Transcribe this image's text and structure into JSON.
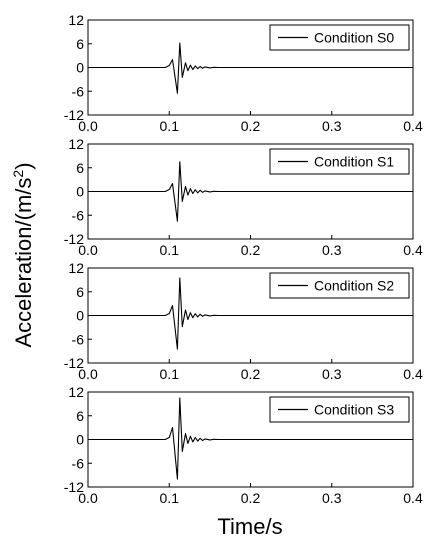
{
  "chart_data": {
    "type": "line",
    "xlabel": "Time/s",
    "ylabel": "Acceleration/(m/s²)",
    "ylabel_parts": {
      "main": "Acceleration/(m/s",
      "sup": "2",
      "close": ")"
    },
    "xlim": [
      0.0,
      0.4
    ],
    "ylim": [
      -12,
      12
    ],
    "x_ticks": [
      "0.0",
      "0.1",
      "0.2",
      "0.3",
      "0.4"
    ],
    "y_ticks": [
      "12",
      "6",
      "0",
      "-6",
      "-12"
    ],
    "grid": false,
    "legend_position": "top-right",
    "line_color": "#000000",
    "panels": [
      {
        "legend": "Condition S0",
        "series": [
          {
            "name": "Condition S0",
            "x": [
              0,
              0.095,
              0.1,
              0.104,
              0.11,
              0.113,
              0.116,
              0.12,
              0.123,
              0.126,
              0.129,
              0.132,
              0.135,
              0.138,
              0.141,
              0.144,
              0.15,
              0.155,
              0.16,
              0.17,
              0.4
            ],
            "y": [
              0,
              0,
              0.5,
              2,
              -6.5,
              6.2,
              -2.5,
              1.2,
              -0.8,
              0.6,
              -0.5,
              0.4,
              -0.3,
              0.25,
              -0.2,
              0.15,
              -0.1,
              0.05,
              0,
              0,
              0
            ]
          }
        ]
      },
      {
        "legend": "Condition S1",
        "series": [
          {
            "name": "Condition S1",
            "x": [
              0,
              0.095,
              0.1,
              0.104,
              0.11,
              0.113,
              0.116,
              0.12,
              0.123,
              0.126,
              0.129,
              0.132,
              0.135,
              0.138,
              0.141,
              0.144,
              0.15,
              0.155,
              0.16,
              0.17,
              0.4
            ],
            "y": [
              0,
              0,
              0.5,
              2,
              -7.5,
              7.5,
              -2.5,
              1.3,
              -0.9,
              0.7,
              -0.5,
              0.45,
              -0.35,
              0.3,
              -0.2,
              0.15,
              -0.1,
              0.05,
              0,
              0,
              0
            ]
          }
        ]
      },
      {
        "legend": "Condition S2",
        "series": [
          {
            "name": "Condition S2",
            "x": [
              0,
              0.095,
              0.1,
              0.104,
              0.11,
              0.113,
              0.116,
              0.12,
              0.123,
              0.126,
              0.129,
              0.132,
              0.135,
              0.138,
              0.141,
              0.144,
              0.15,
              0.155,
              0.16,
              0.17,
              0.4
            ],
            "y": [
              0,
              0,
              0.5,
              2.5,
              -8.5,
              9.5,
              -2.8,
              1.4,
              -1.0,
              0.7,
              -0.55,
              0.45,
              -0.35,
              0.3,
              -0.2,
              0.15,
              -0.1,
              0.05,
              0,
              0,
              0
            ]
          }
        ]
      },
      {
        "legend": "Condition S3",
        "series": [
          {
            "name": "Condition S3",
            "x": [
              0,
              0.095,
              0.1,
              0.104,
              0.11,
              0.113,
              0.116,
              0.12,
              0.123,
              0.126,
              0.129,
              0.132,
              0.135,
              0.138,
              0.141,
              0.144,
              0.15,
              0.155,
              0.16,
              0.17,
              0.4
            ],
            "y": [
              0,
              0,
              0.5,
              3,
              -10,
              10.5,
              -3.0,
              1.5,
              -1.0,
              0.8,
              -0.6,
              0.5,
              -0.4,
              0.3,
              -0.25,
              0.15,
              -0.1,
              0.05,
              0,
              0,
              0
            ]
          }
        ]
      }
    ]
  }
}
